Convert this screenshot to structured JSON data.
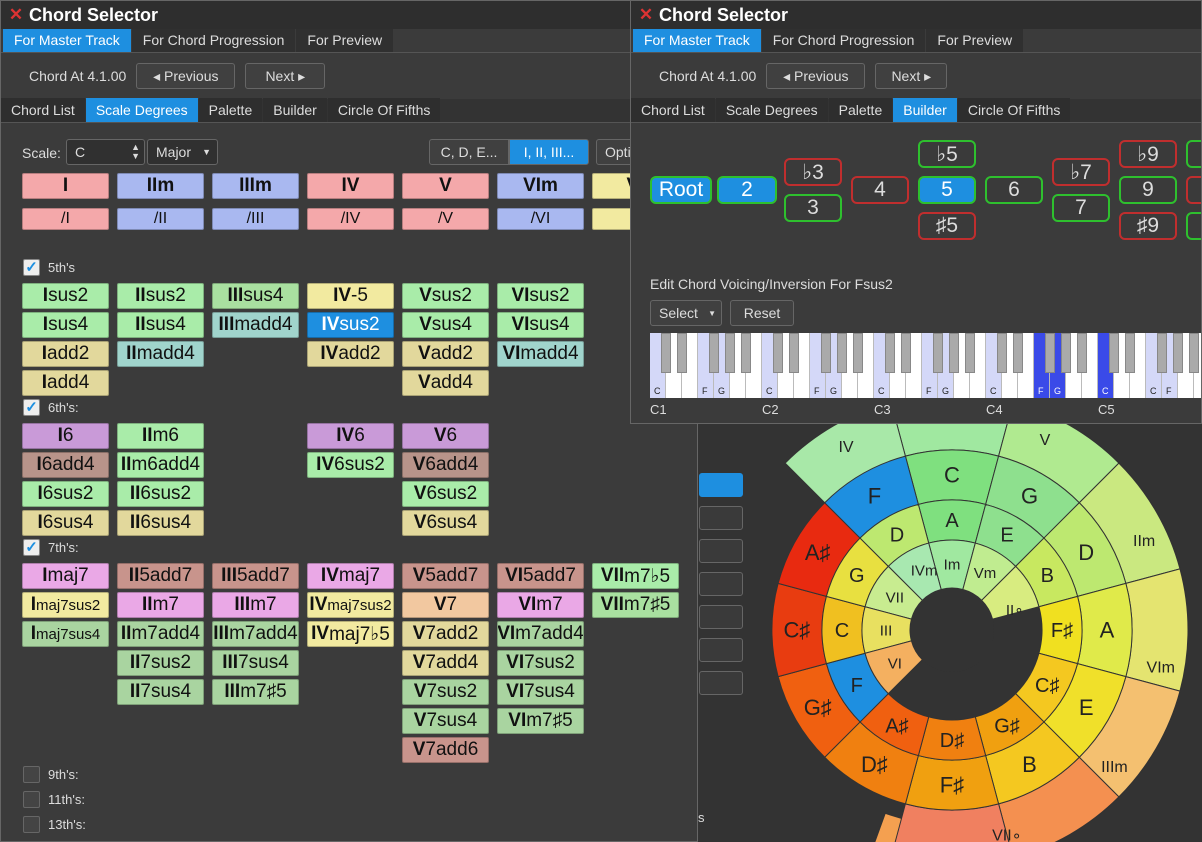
{
  "window1": {
    "title": "Chord Selector",
    "tabs": [
      "For Master Track",
      "For Chord Progression",
      "For Preview"
    ],
    "chord_at": "Chord At 4.1.00",
    "prev": "◂ Previous",
    "next": "Next ▸",
    "subtabs": [
      "Chord List",
      "Scale Degrees",
      "Palette",
      "Builder",
      "Circle Of Fifths"
    ],
    "scale_label": "Scale:",
    "scale_value": "C",
    "mode_value": "Major",
    "toggle1": "C, D, E...",
    "toggle2": "I, II, III...",
    "toggle3": "Opti",
    "degrees": [
      "I",
      "IIm",
      "IIIm",
      "IV",
      "V",
      "VIm",
      "VI"
    ],
    "slash": [
      "/I",
      "/II",
      "/III",
      "/IV",
      "/V",
      "/VI",
      "/"
    ],
    "sec5": "5th's",
    "sec6": "6th's:",
    "sec7": "7th's:",
    "sec9": "9th's:",
    "sec11": "11th's:",
    "sec13": "13th's:",
    "c5": [
      [
        "I",
        "sus2"
      ],
      [
        "II",
        "sus2"
      ],
      [
        "III",
        "sus4"
      ],
      [
        "IV",
        "-5"
      ],
      [
        "V",
        "sus2"
      ],
      [
        "VI",
        "sus2"
      ],
      [
        "I",
        "sus4"
      ],
      [
        "II",
        "sus4"
      ],
      [
        "III",
        "madd4"
      ],
      [
        "IV",
        "sus2"
      ],
      [
        "V",
        "sus4"
      ],
      [
        "VI",
        "sus4"
      ],
      [
        "I",
        "add2"
      ],
      [
        "II",
        "madd4"
      ],
      [
        "IV",
        "add2"
      ],
      [
        "V",
        "add2"
      ],
      [
        "VI",
        "madd4"
      ],
      [
        "I",
        "add4"
      ],
      [
        "V",
        "add4"
      ]
    ],
    "c6": [
      [
        "I",
        "6"
      ],
      [
        "II",
        "m6"
      ],
      [
        "IV",
        "6"
      ],
      [
        "V",
        "6"
      ],
      [
        "I",
        "6add4"
      ],
      [
        "II",
        "m6add4"
      ],
      [
        "IV",
        "6sus2"
      ],
      [
        "V",
        "6add4"
      ],
      [
        "I",
        "6sus2"
      ],
      [
        "II",
        "6sus2"
      ],
      [
        "V",
        "6sus2"
      ],
      [
        "I",
        "6sus4"
      ],
      [
        "II",
        "6sus4"
      ],
      [
        "V",
        "6sus4"
      ]
    ],
    "c7": [
      [
        "I",
        "maj7"
      ],
      [
        "II",
        "5add7"
      ],
      [
        "III",
        "5add7"
      ],
      [
        "IV",
        "maj7"
      ],
      [
        "V",
        "5add7"
      ],
      [
        "VI",
        "5add7"
      ],
      [
        "VII",
        "m7♭5"
      ],
      [
        "I",
        "maj7sus2"
      ],
      [
        "II",
        "m7"
      ],
      [
        "III",
        "m7"
      ],
      [
        "IV",
        "maj7sus2"
      ],
      [
        "V",
        "7"
      ],
      [
        "VI",
        "m7"
      ],
      [
        "VII",
        "m7♯5"
      ],
      [
        "I",
        "maj7sus4"
      ],
      [
        "II",
        "m7add4"
      ],
      [
        "III",
        "m7add4"
      ],
      [
        "IV",
        "maj7♭5"
      ],
      [
        "V",
        "7add2"
      ],
      [
        "VI",
        "m7add4"
      ],
      [
        "II",
        "7sus2"
      ],
      [
        "III",
        "7sus4"
      ],
      [
        "V",
        "7add4"
      ],
      [
        "VI",
        "7sus2"
      ],
      [
        "II",
        "7sus4"
      ],
      [
        "III",
        "m7♯5"
      ],
      [
        "V",
        "7sus2"
      ],
      [
        "VI",
        "7sus4"
      ],
      [
        "V",
        "7sus4"
      ],
      [
        "VI",
        "m7♯5"
      ],
      [
        "V",
        "7add6"
      ]
    ]
  },
  "window2": {
    "title": "Chord Selector",
    "tabs": [
      "For Master Track",
      "For Chord Progression",
      "For Preview"
    ],
    "chord_at": "Chord At 4.1.00",
    "prev": "◂ Previous",
    "next": "Next ▸",
    "subtabs": [
      "Chord List",
      "Scale Degrees",
      "Palette",
      "Builder",
      "Circle Of Fifths"
    ],
    "builder": [
      "Root",
      "2",
      "♭3",
      "3",
      "4",
      "♭5",
      "5",
      "♯5",
      "6",
      "♭7",
      "7",
      "♭9",
      "9",
      "♯9"
    ],
    "voicing_label": "Edit Chord Voicing/Inversion For Fsus2",
    "select": "Select",
    "reset": "Reset",
    "key_labels": [
      "C",
      "F",
      "G",
      "C",
      "F",
      "G",
      "C",
      "F",
      "G",
      "C",
      "F",
      "G",
      "C"
    ],
    "octaves": [
      "C1",
      "C2",
      "C3",
      "C4",
      "C5"
    ]
  },
  "circle": {
    "outer": [
      "C",
      "G",
      "D",
      "A",
      "E",
      "B",
      "F♯",
      "D♯",
      "G♯",
      "C♯",
      "A♯",
      "F"
    ],
    "outer_alt": [
      "F♯",
      "D♯",
      "G♯",
      "C♯",
      "A♯"
    ],
    "middle": [
      "A",
      "E",
      "B",
      "F♯",
      "C♯",
      "G♯",
      "D♯",
      "A♯",
      "F",
      "C",
      "G",
      "D"
    ],
    "inner": [
      "Im",
      "Vm",
      "II∘",
      "VII",
      "III",
      "VI",
      "IVm"
    ],
    "degree_ring": [
      "IV",
      "V",
      "IIm",
      "VIm",
      "IIIm",
      "VII∘"
    ],
    "stray": "s"
  }
}
